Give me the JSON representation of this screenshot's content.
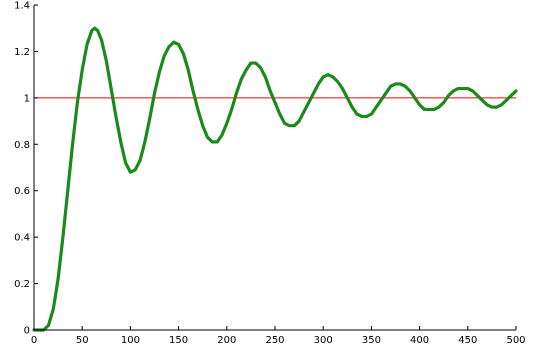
{
  "chart_data": {
    "type": "line",
    "title": "",
    "xlabel": "",
    "ylabel": "",
    "xlim": [
      0,
      500
    ],
    "ylim": [
      0,
      1.4
    ],
    "grid": false,
    "x_ticks": [
      {
        "value": 0,
        "label": "0"
      },
      {
        "value": 50,
        "label": "50"
      },
      {
        "value": 100,
        "label": "100"
      },
      {
        "value": 150,
        "label": "150"
      },
      {
        "value": 200,
        "label": "200"
      },
      {
        "value": 250,
        "label": "250"
      },
      {
        "value": 300,
        "label": "300"
      },
      {
        "value": 350,
        "label": "350"
      },
      {
        "value": 400,
        "label": "400"
      },
      {
        "value": 450,
        "label": "450"
      },
      {
        "value": 500,
        "label": "500"
      }
    ],
    "y_ticks": [
      {
        "value": 0,
        "label": "0"
      },
      {
        "value": 0.2,
        "label": "0.2"
      },
      {
        "value": 0.4,
        "label": "0.4"
      },
      {
        "value": 0.6,
        "label": "0.6"
      },
      {
        "value": 0.8,
        "label": "0.8"
      },
      {
        "value": 1.0,
        "label": "1"
      },
      {
        "value": 1.2,
        "label": "1.2"
      },
      {
        "value": 1.4,
        "label": "1.4"
      }
    ],
    "series": [
      {
        "color": "#1a8a1a",
        "points": [
          [
            0,
            0
          ],
          [
            5,
            0
          ],
          [
            10,
            0
          ],
          [
            15,
            0.02
          ],
          [
            20,
            0.09
          ],
          [
            25,
            0.22
          ],
          [
            30,
            0.4
          ],
          [
            35,
            0.6
          ],
          [
            40,
            0.8
          ],
          [
            45,
            0.98
          ],
          [
            50,
            1.12
          ],
          [
            55,
            1.23
          ],
          [
            60,
            1.29
          ],
          [
            63,
            1.3
          ],
          [
            66,
            1.29
          ],
          [
            70,
            1.25
          ],
          [
            75,
            1.16
          ],
          [
            80,
            1.04
          ],
          [
            85,
            0.92
          ],
          [
            90,
            0.81
          ],
          [
            95,
            0.72
          ],
          [
            100,
            0.68
          ],
          [
            105,
            0.69
          ],
          [
            110,
            0.73
          ],
          [
            115,
            0.81
          ],
          [
            120,
            0.91
          ],
          [
            125,
            1.02
          ],
          [
            130,
            1.11
          ],
          [
            135,
            1.18
          ],
          [
            140,
            1.22
          ],
          [
            145,
            1.24
          ],
          [
            150,
            1.23
          ],
          [
            155,
            1.19
          ],
          [
            160,
            1.12
          ],
          [
            165,
            1.03
          ],
          [
            170,
            0.95
          ],
          [
            175,
            0.88
          ],
          [
            180,
            0.83
          ],
          [
            185,
            0.81
          ],
          [
            190,
            0.81
          ],
          [
            195,
            0.84
          ],
          [
            200,
            0.89
          ],
          [
            205,
            0.95
          ],
          [
            210,
            1.02
          ],
          [
            215,
            1.08
          ],
          [
            220,
            1.12
          ],
          [
            225,
            1.15
          ],
          [
            230,
            1.15
          ],
          [
            235,
            1.13
          ],
          [
            240,
            1.09
          ],
          [
            245,
            1.03
          ],
          [
            250,
            0.98
          ],
          [
            255,
            0.93
          ],
          [
            260,
            0.89
          ],
          [
            265,
            0.88
          ],
          [
            270,
            0.88
          ],
          [
            275,
            0.9
          ],
          [
            280,
            0.94
          ],
          [
            285,
            0.98
          ],
          [
            290,
            1.02
          ],
          [
            295,
            1.06
          ],
          [
            300,
            1.09
          ],
          [
            305,
            1.1
          ],
          [
            310,
            1.09
          ],
          [
            315,
            1.07
          ],
          [
            320,
            1.04
          ],
          [
            325,
            1.0
          ],
          [
            330,
            0.96
          ],
          [
            335,
            0.93
          ],
          [
            340,
            0.92
          ],
          [
            345,
            0.92
          ],
          [
            350,
            0.93
          ],
          [
            355,
            0.96
          ],
          [
            360,
            0.99
          ],
          [
            365,
            1.02
          ],
          [
            370,
            1.05
          ],
          [
            375,
            1.06
          ],
          [
            380,
            1.06
          ],
          [
            385,
            1.05
          ],
          [
            390,
            1.03
          ],
          [
            395,
            1.0
          ],
          [
            400,
            0.97
          ],
          [
            405,
            0.95
          ],
          [
            410,
            0.95
          ],
          [
            415,
            0.95
          ],
          [
            420,
            0.96
          ],
          [
            425,
            0.98
          ],
          [
            430,
            1.01
          ],
          [
            435,
            1.03
          ],
          [
            440,
            1.04
          ],
          [
            445,
            1.04
          ],
          [
            450,
            1.04
          ],
          [
            455,
            1.03
          ],
          [
            460,
            1.01
          ],
          [
            465,
            0.99
          ],
          [
            470,
            0.97
          ],
          [
            475,
            0.96
          ],
          [
            480,
            0.96
          ],
          [
            485,
            0.97
          ],
          [
            490,
            0.99
          ],
          [
            495,
            1.01
          ],
          [
            500,
            1.03
          ]
        ]
      },
      {
        "color": "#ff0000",
        "points": [
          [
            0,
            1
          ],
          [
            500,
            1
          ]
        ]
      }
    ]
  }
}
